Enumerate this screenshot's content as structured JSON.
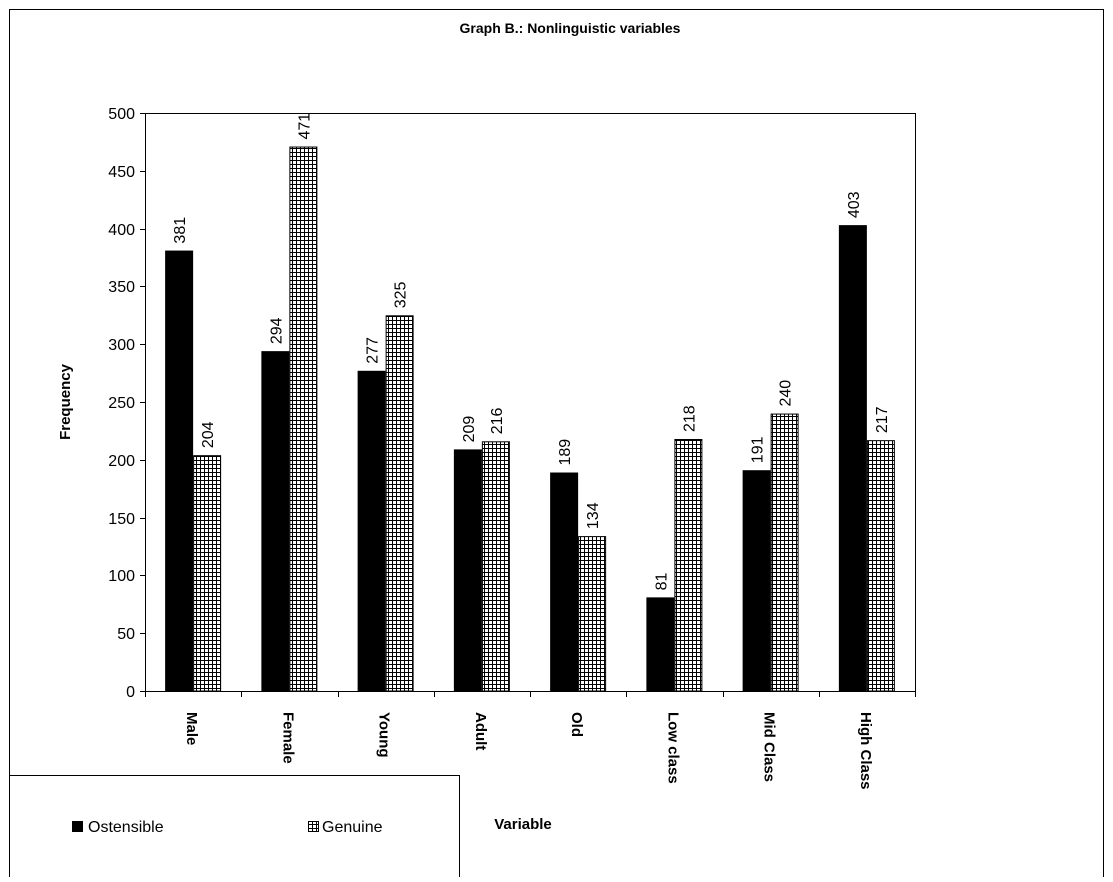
{
  "chart_data": {
    "type": "bar",
    "title": "Graph B.: Nonlinguistic variables",
    "xlabel": "Variable",
    "ylabel": "Frequency",
    "ylim": [
      0,
      500
    ],
    "yticks": [
      0,
      50,
      100,
      150,
      200,
      250,
      300,
      350,
      400,
      450,
      500
    ],
    "categories": [
      "Male",
      "Female",
      "Young",
      "Adult",
      "Old",
      "Low class",
      "Mid Class",
      "High Class"
    ],
    "series": [
      {
        "name": "Ostensible",
        "values": [
          381,
          294,
          277,
          209,
          189,
          81,
          191,
          403
        ],
        "fill": "solid",
        "color": "#000000"
      },
      {
        "name": "Genuine",
        "values": [
          204,
          471,
          325,
          216,
          134,
          218,
          240,
          217
        ],
        "fill": "grid-pattern",
        "color": "#000000"
      }
    ],
    "grid": false,
    "legend_position": "bottom-left",
    "data_labels": true
  }
}
